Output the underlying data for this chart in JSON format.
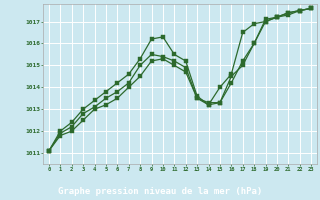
{
  "xlabel": "Graphe pression niveau de la mer (hPa)",
  "bg_color": "#cce8f0",
  "plot_bg_color": "#cce8f0",
  "line_color": "#2d6a2d",
  "grid_color": "#ffffff",
  "xlabel_bg": "#2d6a2d",
  "xlabel_fg": "#ffffff",
  "ylim": [
    1010.5,
    1017.8
  ],
  "xlim": [
    -0.5,
    23.5
  ],
  "yticks": [
    1011,
    1012,
    1013,
    1014,
    1015,
    1016,
    1017
  ],
  "xticks": [
    0,
    1,
    2,
    3,
    4,
    5,
    6,
    7,
    8,
    9,
    10,
    11,
    12,
    13,
    14,
    15,
    16,
    17,
    18,
    19,
    20,
    21,
    22,
    23
  ],
  "series": [
    [
      1011.1,
      1011.9,
      1012.2,
      1012.8,
      1013.1,
      1013.5,
      1013.8,
      1014.2,
      1015.0,
      1015.5,
      1015.4,
      1015.2,
      1014.9,
      1013.5,
      1013.2,
      1013.3,
      1014.5,
      1015.0,
      1016.0,
      1017.0,
      1017.2,
      1017.4,
      1017.5,
      1017.6
    ],
    [
      1011.1,
      1012.0,
      1012.4,
      1013.0,
      1013.4,
      1013.8,
      1014.2,
      1014.6,
      1015.3,
      1016.2,
      1016.3,
      1015.5,
      1015.2,
      1013.6,
      1013.2,
      1014.0,
      1014.6,
      1016.5,
      1016.9,
      1017.0,
      1017.2,
      1017.3,
      1017.5,
      1017.6
    ],
    [
      1011.1,
      1011.8,
      1012.0,
      1012.5,
      1013.0,
      1013.2,
      1013.5,
      1014.0,
      1014.5,
      1015.2,
      1015.3,
      1015.0,
      1014.7,
      1013.5,
      1013.3,
      1013.3,
      1014.2,
      1015.2,
      1016.0,
      1017.1,
      1017.2,
      1017.4,
      1017.5,
      1017.6
    ]
  ]
}
